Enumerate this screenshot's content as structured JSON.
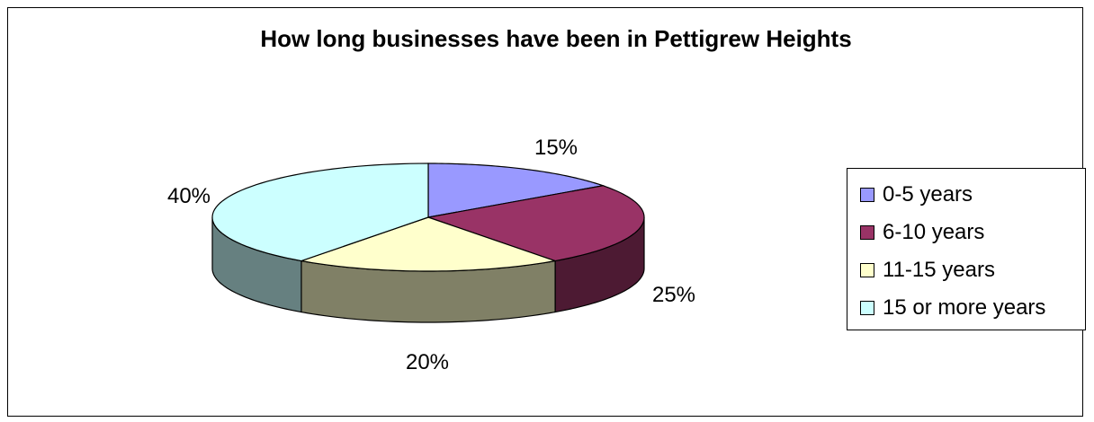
{
  "chart_data": {
    "type": "pie",
    "title": "How long businesses have been in Pettigrew Heights",
    "slices": [
      {
        "label": "0-5 years",
        "value": 15,
        "display": "15%",
        "color": "#9999ff",
        "side": "#6b6bb3"
      },
      {
        "label": "6-10 years",
        "value": 25,
        "display": "25%",
        "color": "#993366",
        "side": "#4d1a33"
      },
      {
        "label": "11-15 years",
        "value": 20,
        "display": "20%",
        "color": "#ffffcc",
        "side": "#808066"
      },
      {
        "label": "15 or more years",
        "value": 40,
        "display": "40%",
        "color": "#ccffff",
        "side": "#668080"
      }
    ],
    "legend_position": "right",
    "style": "3d-pie"
  }
}
